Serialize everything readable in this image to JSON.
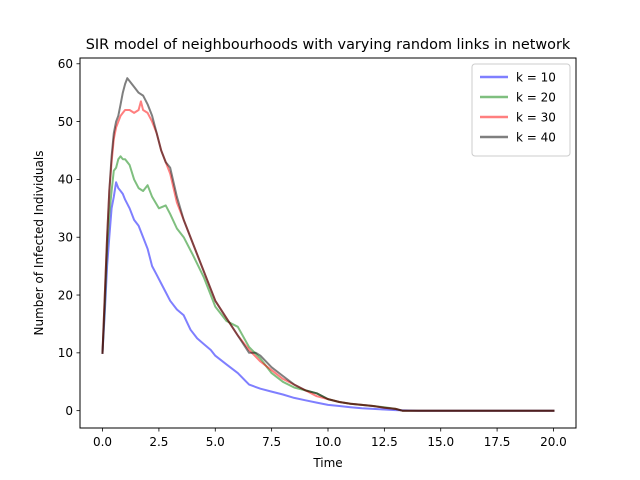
{
  "chart_data": {
    "type": "line",
    "title": "SIR model of neighbourhoods with varying random links in network",
    "xlabel": "Time",
    "ylabel": "Number of Infected Individuals",
    "xlim": [
      -1.0,
      21.0
    ],
    "ylim": [
      -3.0,
      61.0
    ],
    "xticks": [
      0.0,
      2.5,
      5.0,
      7.5,
      10.0,
      12.5,
      15.0,
      17.5,
      20.0
    ],
    "xtick_labels": [
      "0.0",
      "2.5",
      "5.0",
      "7.5",
      "10.0",
      "12.5",
      "15.0",
      "17.5",
      "20.0"
    ],
    "yticks": [
      0,
      10,
      20,
      30,
      40,
      50,
      60
    ],
    "ytick_labels": [
      "0",
      "10",
      "20",
      "30",
      "40",
      "50",
      "60"
    ],
    "grid": false,
    "legend_position": "top-right",
    "series": [
      {
        "name": "k = 10",
        "color": "#0000ff",
        "alpha": 0.5,
        "x": [
          0,
          0.1,
          0.2,
          0.3,
          0.4,
          0.5,
          0.6,
          0.7,
          0.8,
          0.9,
          1.0,
          1.2,
          1.4,
          1.6,
          1.8,
          2.0,
          2.2,
          2.4,
          2.6,
          2.8,
          3.0,
          3.3,
          3.6,
          3.9,
          4.2,
          4.5,
          4.8,
          5.0,
          5.5,
          6.0,
          6.5,
          7.0,
          7.5,
          8.0,
          8.5,
          9.0,
          9.5,
          10.0,
          10.5,
          11.0,
          11.5,
          12.0,
          12.5,
          13.0,
          14.0,
          15.0,
          16.0,
          17.0,
          18.0,
          19.0,
          20.0
        ],
        "values": [
          10,
          17,
          25,
          30,
          35,
          37,
          39.5,
          38.5,
          38,
          37.5,
          36.5,
          35,
          33,
          32,
          30,
          28,
          25,
          23.5,
          22,
          20.5,
          19,
          17.5,
          16.5,
          14,
          12.5,
          11.5,
          10.5,
          9.5,
          8,
          6.5,
          4.5,
          3.8,
          3.3,
          2.8,
          2.2,
          1.8,
          1.4,
          1.0,
          0.8,
          0.6,
          0.4,
          0.3,
          0.2,
          0.1,
          0,
          0,
          0,
          0,
          0,
          0,
          0
        ]
      },
      {
        "name": "k = 20",
        "color": "#008000",
        "alpha": 0.5,
        "x": [
          0,
          0.1,
          0.2,
          0.3,
          0.4,
          0.5,
          0.6,
          0.7,
          0.8,
          0.9,
          1.0,
          1.2,
          1.4,
          1.6,
          1.8,
          2.0,
          2.2,
          2.5,
          2.8,
          3.0,
          3.3,
          3.6,
          4.0,
          4.5,
          5.0,
          5.5,
          6.0,
          6.5,
          7.0,
          7.5,
          8.0,
          8.5,
          9.0,
          9.5,
          10.0,
          10.5,
          11.0,
          11.5,
          12.0,
          12.5,
          13.0,
          13.3,
          14.0,
          15.0,
          16.0,
          17.0,
          18.0,
          19.0,
          20.0
        ],
        "values": [
          10,
          18,
          28,
          34,
          38,
          41.5,
          42,
          43.5,
          44,
          43.5,
          43.5,
          42.5,
          40,
          38.5,
          38,
          39,
          37,
          35,
          35.5,
          34,
          31.5,
          30,
          27,
          23,
          18,
          15.5,
          14.5,
          11,
          9,
          6.5,
          5,
          4,
          3.5,
          3,
          2,
          1.5,
          1.2,
          1,
          0.8,
          0.6,
          0.3,
          0,
          0,
          0,
          0,
          0,
          0,
          0,
          0
        ]
      },
      {
        "name": "k = 30",
        "color": "#ff0000",
        "alpha": 0.5,
        "x": [
          0,
          0.1,
          0.2,
          0.3,
          0.4,
          0.5,
          0.6,
          0.7,
          0.8,
          0.9,
          1.0,
          1.2,
          1.4,
          1.6,
          1.7,
          1.8,
          2.0,
          2.2,
          2.4,
          2.6,
          2.8,
          3.0,
          3.3,
          3.6,
          4.0,
          4.5,
          5.0,
          5.5,
          6.0,
          6.5,
          7.0,
          7.5,
          8.0,
          8.5,
          9.0,
          9.5,
          10.0,
          10.5,
          11.0,
          11.5,
          12.0,
          12.5,
          13.0,
          13.3,
          14.0,
          15.0,
          16.0,
          17.0,
          18.0,
          19.0,
          20.0
        ],
        "values": [
          10,
          20,
          30,
          38,
          43,
          47,
          49,
          50,
          51,
          51.5,
          52,
          52,
          51.5,
          52,
          53.5,
          52,
          51.5,
          50,
          48,
          45,
          43,
          41,
          36,
          33,
          29,
          24,
          19,
          16,
          13,
          10.5,
          8.5,
          7,
          5.5,
          4.5,
          3.5,
          2.5,
          2,
          1.5,
          1.2,
          1,
          0.8,
          0.5,
          0.3,
          0,
          0,
          0,
          0,
          0,
          0,
          0,
          0
        ]
      },
      {
        "name": "k = 40",
        "color": "#000000",
        "alpha": 0.5,
        "x": [
          0,
          0.1,
          0.2,
          0.3,
          0.4,
          0.5,
          0.6,
          0.7,
          0.8,
          0.9,
          1.0,
          1.1,
          1.2,
          1.4,
          1.6,
          1.8,
          2.0,
          2.2,
          2.4,
          2.6,
          2.8,
          3.0,
          3.3,
          3.6,
          4.0,
          4.5,
          5.0,
          5.5,
          6.0,
          6.5,
          6.8,
          7.0,
          7.5,
          8.0,
          8.5,
          9.0,
          9.5,
          10.0,
          10.5,
          11.0,
          11.5,
          12.0,
          12.5,
          13.0,
          13.3,
          14.0,
          15.0,
          16.0,
          17.0,
          18.0,
          19.0,
          20.0
        ],
        "values": [
          10,
          20,
          30,
          38,
          44,
          48,
          50,
          51,
          53,
          55,
          56.5,
          57.5,
          57,
          56,
          55,
          54.5,
          53,
          51,
          48,
          45,
          43,
          42,
          37,
          33,
          29,
          24,
          19,
          16,
          13,
          10,
          10,
          9.5,
          7.5,
          6,
          4.5,
          3.5,
          3,
          2,
          1.5,
          1.2,
          1,
          0.8,
          0.5,
          0.3,
          0,
          0,
          0,
          0,
          0,
          0,
          0,
          0
        ]
      }
    ]
  }
}
